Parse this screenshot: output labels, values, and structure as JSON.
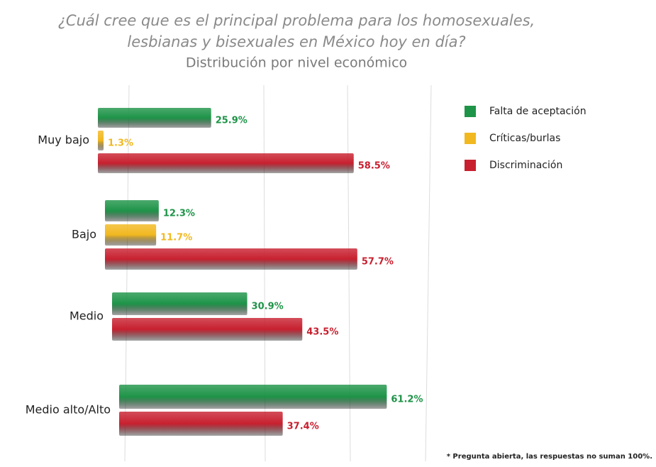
{
  "chart_data": {
    "type": "hbar",
    "title": [
      "¿Cuál cree que es el principal problema para los homosexuales,",
      "lesbianas y bisexuales en México hoy en día?"
    ],
    "subtitle": "Distribución por nivel económico",
    "categories": [
      "Muy bajo",
      "Bajo",
      "Medio",
      "Medio alto/Alto"
    ],
    "series": [
      {
        "name": "Falta de aceptación",
        "color": "#1e9448",
        "values": [
          25.9,
          12.3,
          30.9,
          61.2
        ],
        "value_labels": [
          "25.9%",
          "12.3%",
          "30.9%",
          "61.2%"
        ]
      },
      {
        "name": "Críticas/burlas",
        "color": "#f2b81f",
        "values": [
          1.3,
          11.7,
          null,
          null
        ],
        "value_labels": [
          "1.3%",
          "11.7%",
          null,
          null
        ]
      },
      {
        "name": "Discriminación",
        "color": "#c8202f",
        "values": [
          58.5,
          57.7,
          43.5,
          37.4
        ],
        "value_labels": [
          "58.5%",
          "57.7%",
          "43.5%",
          "37.4%"
        ]
      }
    ],
    "xlim": [
      0,
      60
    ],
    "legend": "right",
    "note": "* Pregunta abierta, las respuestas no suman 100%."
  }
}
